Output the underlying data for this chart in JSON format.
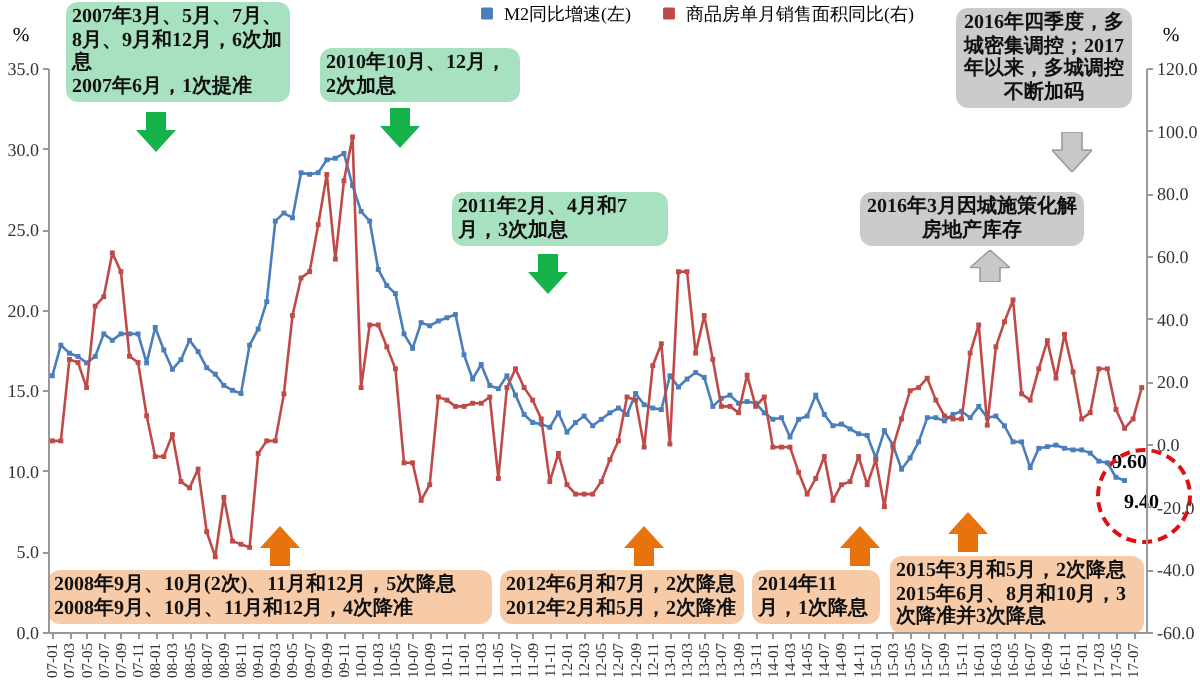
{
  "chart_data": {
    "type": "line",
    "categories": [
      "07-01",
      null,
      "07-03",
      null,
      "07-05",
      null,
      "07-07",
      null,
      "07-09",
      null,
      "07-11",
      null,
      "08-01",
      null,
      "08-03",
      null,
      "08-05",
      null,
      "08-07",
      null,
      "08-09",
      null,
      "08-11",
      null,
      "09-01",
      null,
      "09-03",
      null,
      "09-05",
      null,
      "09-07",
      null,
      "09-09",
      null,
      "09-11",
      null,
      "10-01",
      null,
      "10-03",
      null,
      "10-05",
      null,
      "10-07",
      null,
      "10-09",
      null,
      "10-11",
      null,
      "11-01",
      null,
      "11-03",
      null,
      "11-05",
      null,
      "11-07",
      null,
      "11-09",
      null,
      "11-11",
      null,
      "12-01",
      null,
      "12-03",
      null,
      "12-05",
      null,
      "12-07",
      null,
      "12-09",
      null,
      "12-11",
      null,
      "13-01",
      null,
      "13-03",
      null,
      "13-05",
      null,
      "13-07",
      null,
      "13-09",
      null,
      "13-11",
      null,
      "14-01",
      null,
      "14-03",
      null,
      "14-05",
      null,
      "14-07",
      null,
      "14-09",
      null,
      "14-11",
      null,
      "15-01",
      null,
      "15-03",
      null,
      "15-05",
      null,
      "15-07",
      null,
      "15-09",
      null,
      "15-11",
      null,
      "16-01",
      null,
      "16-03",
      null,
      "16-05",
      null,
      "16-07",
      null,
      "16-09",
      null,
      "16-11",
      null,
      "17-01",
      null,
      "17-03",
      null,
      "17-05",
      null,
      "17-07",
      null
    ],
    "series": [
      {
        "name": "M2同比增速(左)",
        "color": "#4a7ebb",
        "values": [
          15.9,
          17.8,
          17.3,
          17.1,
          16.7,
          17.1,
          18.5,
          18.1,
          18.5,
          18.5,
          18.5,
          16.7,
          18.9,
          17.5,
          16.3,
          16.9,
          18.1,
          17.4,
          16.4,
          16.0,
          15.3,
          15.0,
          14.8,
          17.8,
          18.8,
          20.5,
          25.5,
          26.0,
          25.7,
          28.5,
          28.4,
          28.5,
          29.3,
          29.4,
          29.7,
          27.7,
          26.1,
          25.5,
          22.5,
          21.5,
          21.0,
          18.5,
          17.6,
          19.2,
          19.0,
          19.3,
          19.5,
          19.7,
          17.2,
          15.7,
          16.6,
          15.3,
          15.1,
          15.9,
          14.7,
          13.5,
          13.0,
          12.9,
          12.7,
          13.6,
          12.4,
          13.0,
          13.4,
          12.8,
          13.2,
          13.6,
          13.9,
          13.5,
          14.8,
          14.1,
          13.9,
          13.8,
          15.9,
          15.2,
          15.7,
          16.1,
          15.8,
          14.0,
          14.5,
          14.7,
          14.2,
          14.3,
          14.2,
          13.6,
          13.2,
          13.3,
          12.1,
          13.2,
          13.4,
          14.7,
          13.5,
          12.8,
          12.9,
          12.6,
          12.3,
          12.2,
          10.8,
          12.5,
          11.6,
          10.1,
          10.8,
          11.8,
          13.3,
          13.3,
          13.1,
          13.5,
          13.7,
          13.3,
          14.0,
          13.3,
          13.4,
          12.8,
          11.8,
          11.8,
          10.2,
          11.4,
          11.5,
          11.6,
          11.4,
          11.3,
          11.3,
          11.1,
          10.6,
          10.5,
          9.6,
          9.4,
          null,
          null
        ]
      },
      {
        "name": "商品房单月销售面积同比(右)",
        "color": "#be4b48",
        "axis": "y2",
        "values": [
          1,
          1,
          27,
          26,
          18,
          44,
          47,
          61,
          55,
          28,
          26,
          9,
          -4,
          -4,
          3,
          -12,
          -14,
          -8,
          -28,
          -36,
          -17,
          -31,
          -32,
          -33,
          -3,
          1,
          1,
          16,
          41,
          53,
          55,
          70,
          86,
          59,
          84,
          98,
          18,
          38,
          38,
          31,
          24,
          -6,
          -6,
          -18,
          -13,
          15,
          14,
          12,
          12,
          13,
          13,
          15,
          -11,
          18,
          24,
          18,
          14,
          8,
          -12,
          -3,
          -13,
          -16,
          -16,
          -16,
          -12,
          -5,
          1,
          15,
          14,
          -1,
          25,
          32,
          0,
          55,
          55,
          29,
          41,
          27,
          12,
          12,
          10,
          22,
          12,
          15,
          -1,
          -1,
          -1,
          -9,
          -16,
          -11,
          -4,
          -18,
          -13,
          -12,
          -4,
          -13,
          -5,
          -20,
          -1,
          8,
          17,
          18,
          21,
          14,
          9,
          8,
          8,
          29,
          38,
          6,
          31,
          39,
          46,
          16,
          14,
          24,
          33,
          21,
          35,
          23,
          8,
          10,
          24,
          24,
          11,
          5,
          8,
          18
        ]
      }
    ],
    "ylabel": "%",
    "y2label": "%",
    "ylim": [
      0,
      35
    ],
    "yticks": [
      {
        "value": 0,
        "label": "0.0"
      },
      {
        "value": 5,
        "label": "5.0"
      },
      {
        "value": 10,
        "label": "10.0"
      },
      {
        "value": 15,
        "label": "15.0"
      },
      {
        "value": 20,
        "label": "20.0"
      },
      {
        "value": 25,
        "label": "25.0"
      },
      {
        "value": 30,
        "label": "30.0"
      },
      {
        "value": 35,
        "label": "35.0"
      }
    ],
    "y2lim": [
      -60,
      120
    ],
    "y2ticks": [
      {
        "value": -60,
        "label": "-60.0"
      },
      {
        "value": -40,
        "label": "-40.0"
      },
      {
        "value": -20,
        "label": "-20.0"
      },
      {
        "value": 0,
        "label": "0.0"
      },
      {
        "value": 20,
        "label": "20.0"
      },
      {
        "value": 40,
        "label": "40.0"
      },
      {
        "value": 60,
        "label": "60.0"
      },
      {
        "value": 80,
        "label": "80.0"
      },
      {
        "value": 100,
        "label": "100.0"
      },
      {
        "value": 120,
        "label": "120.0"
      }
    ],
    "legend": "top",
    "marker": "square",
    "grid": false,
    "line_style": "solid",
    "annotations": [
      "2007年3月、5月、7月、8月、9月和12月，6次加息\n2007年6月，1次提准",
      "2010年10月、12月，2次加息",
      "2011年2月、4月和7月，3次加息",
      "2016年四季度，多城密集调控；2017年以来，多城调控不断加码",
      "2016年3月因城施策化解房地产库存",
      "2008年9月、10月(2次)、11月和12月，5次降息\n2008年9月、10月、11月和12月，4次降准",
      "2012年6月和7月，2次降息\n2012年2月和5月，2次降准",
      "2014年11月，1次降息",
      "2015年3月和5月，2次降息\n2015年6月、8月和10月，3次降准并3次降息",
      "9.60",
      "9.40"
    ]
  }
}
